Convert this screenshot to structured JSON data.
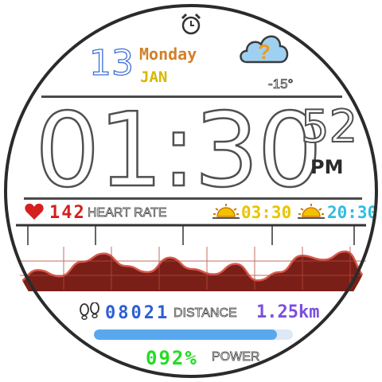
{
  "date": {
    "day": "13",
    "weekday": "Monday",
    "month": "JAN"
  },
  "weather": {
    "temperature": "-15°",
    "icon": "cloud-question-icon"
  },
  "time": {
    "hours_minutes": "01:30",
    "seconds": "52",
    "ampm": "PM"
  },
  "heart": {
    "value": "142",
    "label": "HEART RATE"
  },
  "sun": {
    "sunrise": "03:30",
    "sunset": "20:30"
  },
  "activity": {
    "steps": "08021",
    "distance_label": "DISTANCE",
    "distance_value": "1.25km"
  },
  "battery": {
    "value": "092%",
    "label": "POWER",
    "level": 0.92
  },
  "colors": {
    "day": "#3b6fd6",
    "weekday": "#d2802a",
    "month": "#d8b800",
    "heart": "#d61f1f",
    "sunrise": "#e8c400",
    "sunset": "#2fbde0",
    "steps": "#2c5fd2",
    "distance": "#7a4fe0",
    "battery_bar": "#59a8ee",
    "power": "#22dd22",
    "graph": "#7a1f18"
  },
  "heart_graph": {
    "samples": [
      50,
      62,
      56,
      70,
      78,
      66,
      60,
      74,
      63,
      58,
      68,
      52,
      60,
      76,
      72,
      80,
      55
    ]
  }
}
